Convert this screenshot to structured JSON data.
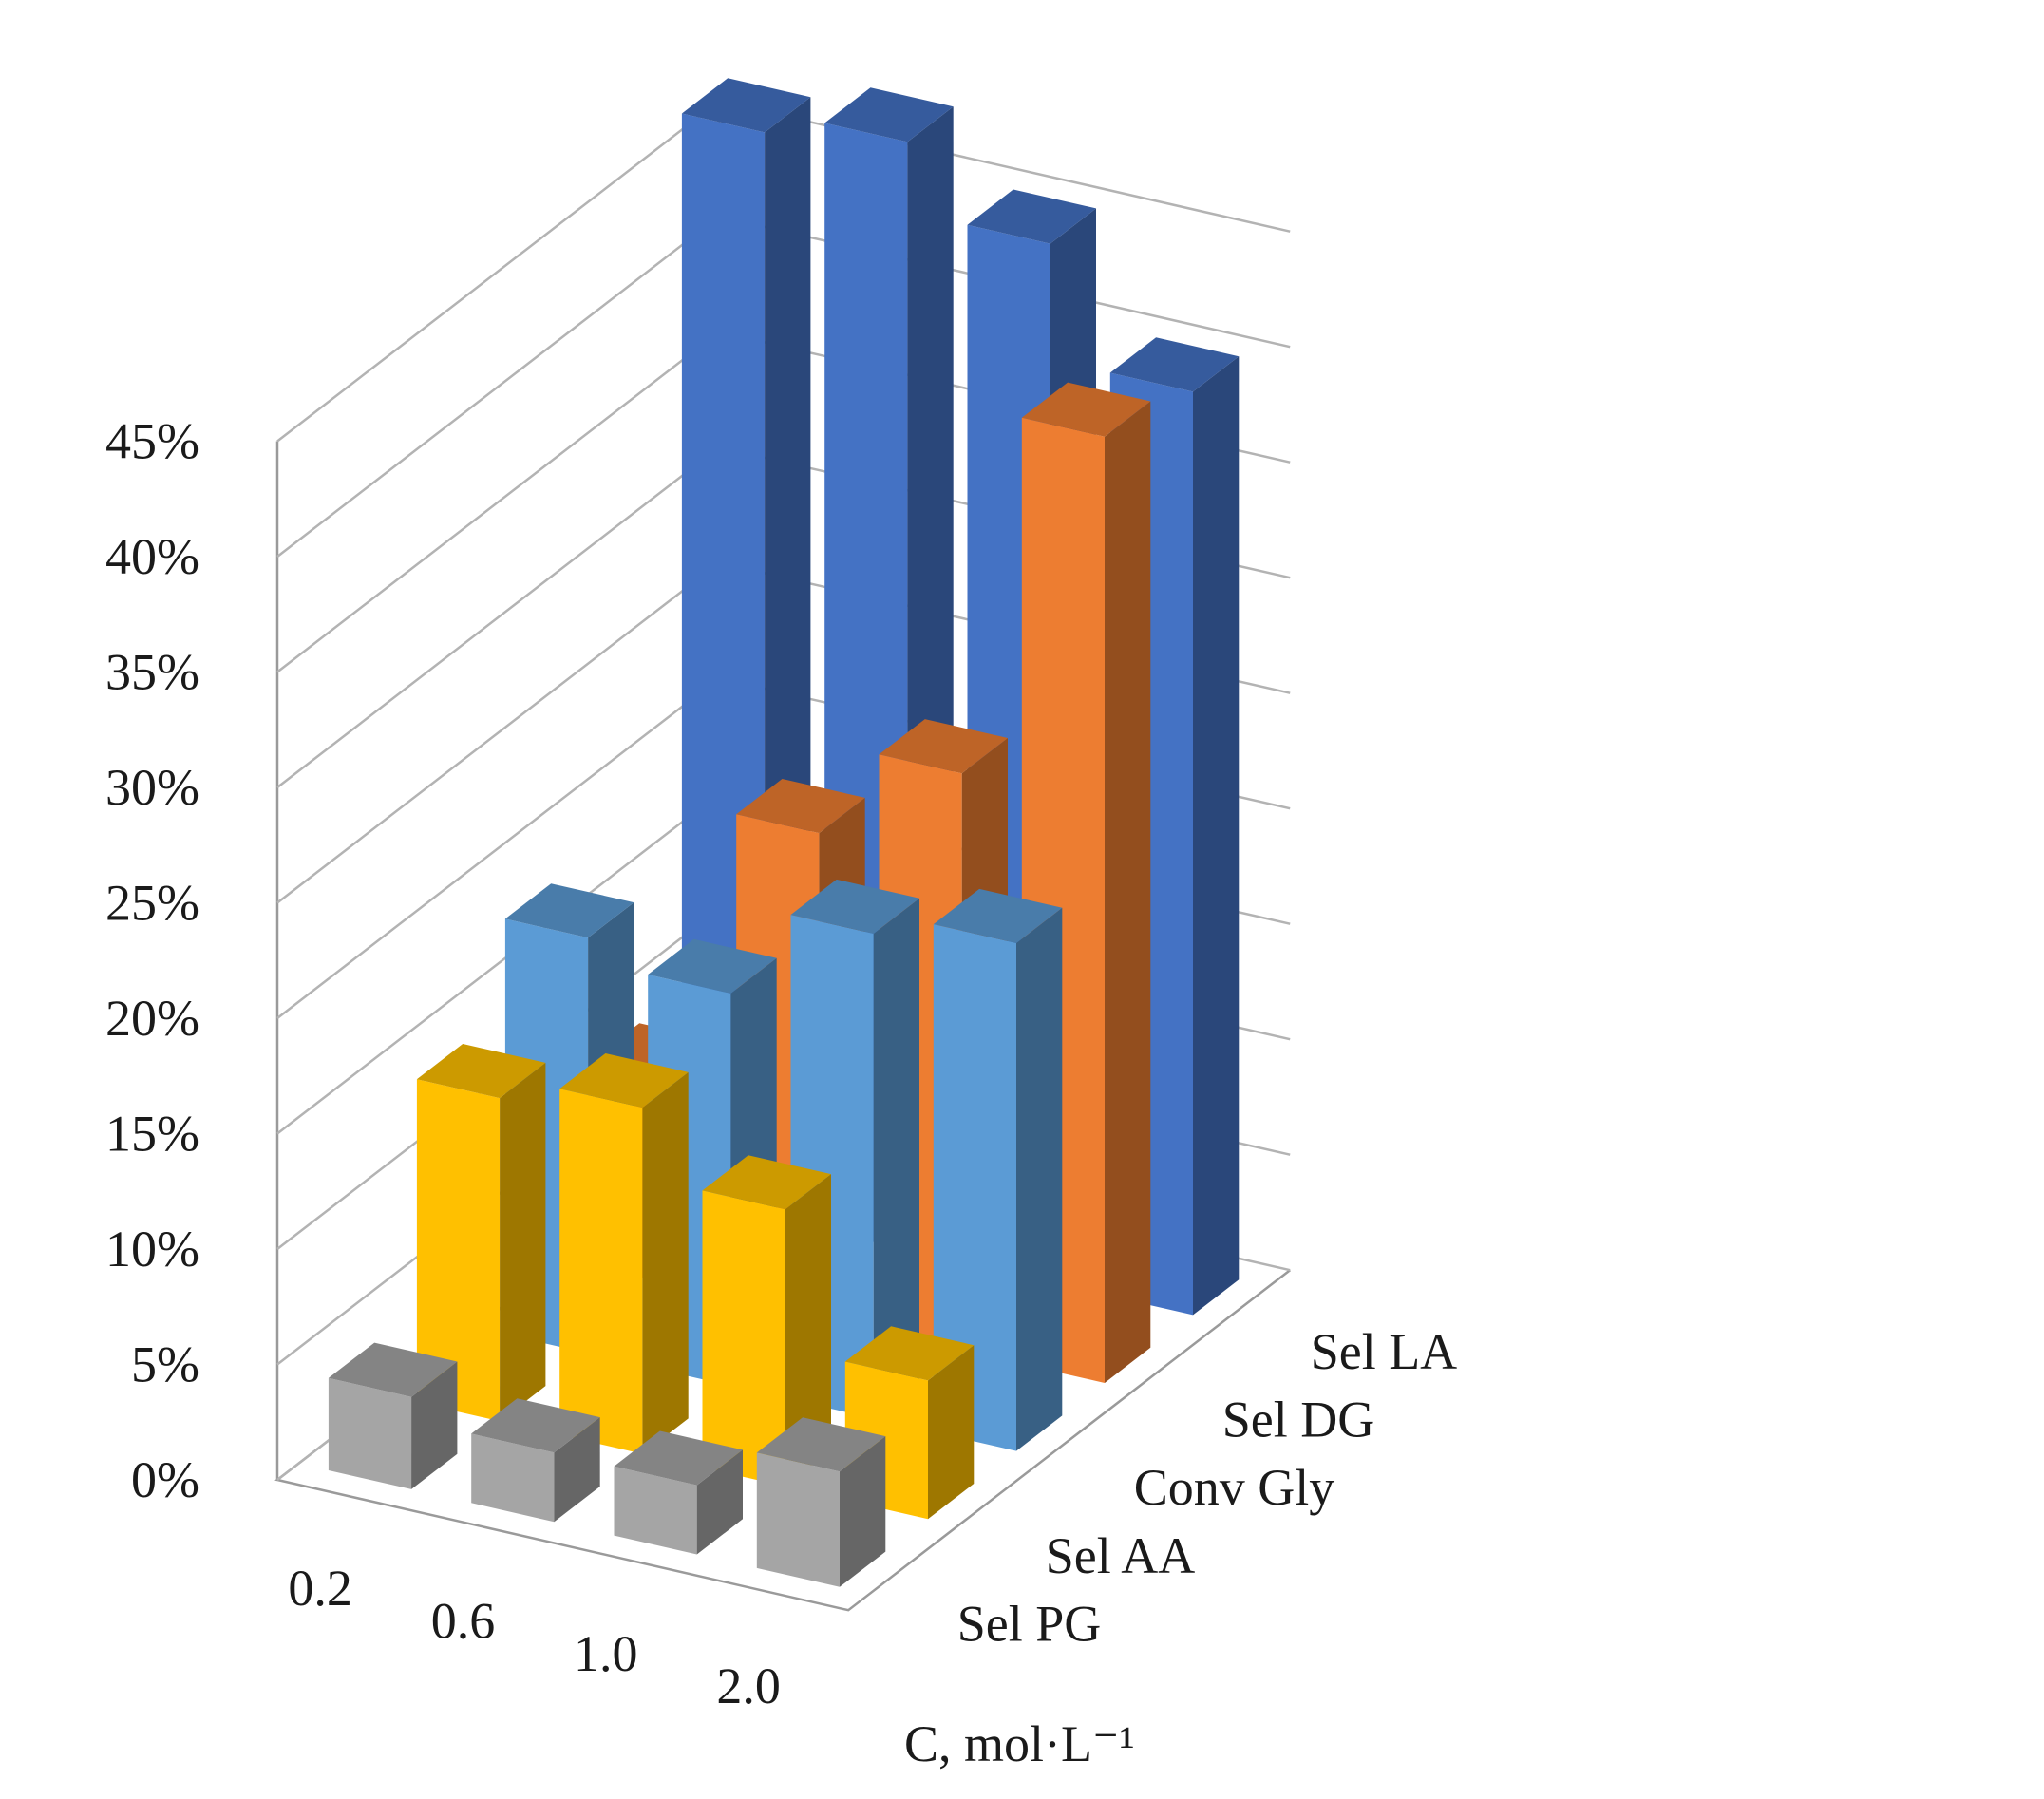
{
  "chart_data": {
    "type": "bar3d",
    "title": "",
    "categories": [
      "0.2",
      "0.6",
      "1.0",
      "2.0"
    ],
    "xlabel": "C, mol·L⁻¹",
    "ylabel": "",
    "ylim": [
      0,
      45
    ],
    "ytick_step": 5,
    "ytick_labels": [
      "0%",
      "5%",
      "10%",
      "15%",
      "20%",
      "25%",
      "30%",
      "35%",
      "40%",
      "45%"
    ],
    "grid": true,
    "series": [
      {
        "name": "Sel PG",
        "values": [
          4,
          3,
          3,
          5
        ],
        "color": "#a5a5a5"
      },
      {
        "name": "Sel AA",
        "values": [
          14,
          15,
          12,
          6
        ],
        "color": "#ffc000"
      },
      {
        "name": "Conv Gly",
        "values": [
          18,
          17,
          21,
          22
        ],
        "color": "#5b9bd5"
      },
      {
        "name": "Sel DG",
        "values": [
          9,
          21,
          25,
          41
        ],
        "color": "#ed7d31"
      },
      {
        "name": "Sel LA",
        "values": [
          47,
          48,
          45,
          40
        ],
        "color": "#4472c4"
      }
    ]
  }
}
